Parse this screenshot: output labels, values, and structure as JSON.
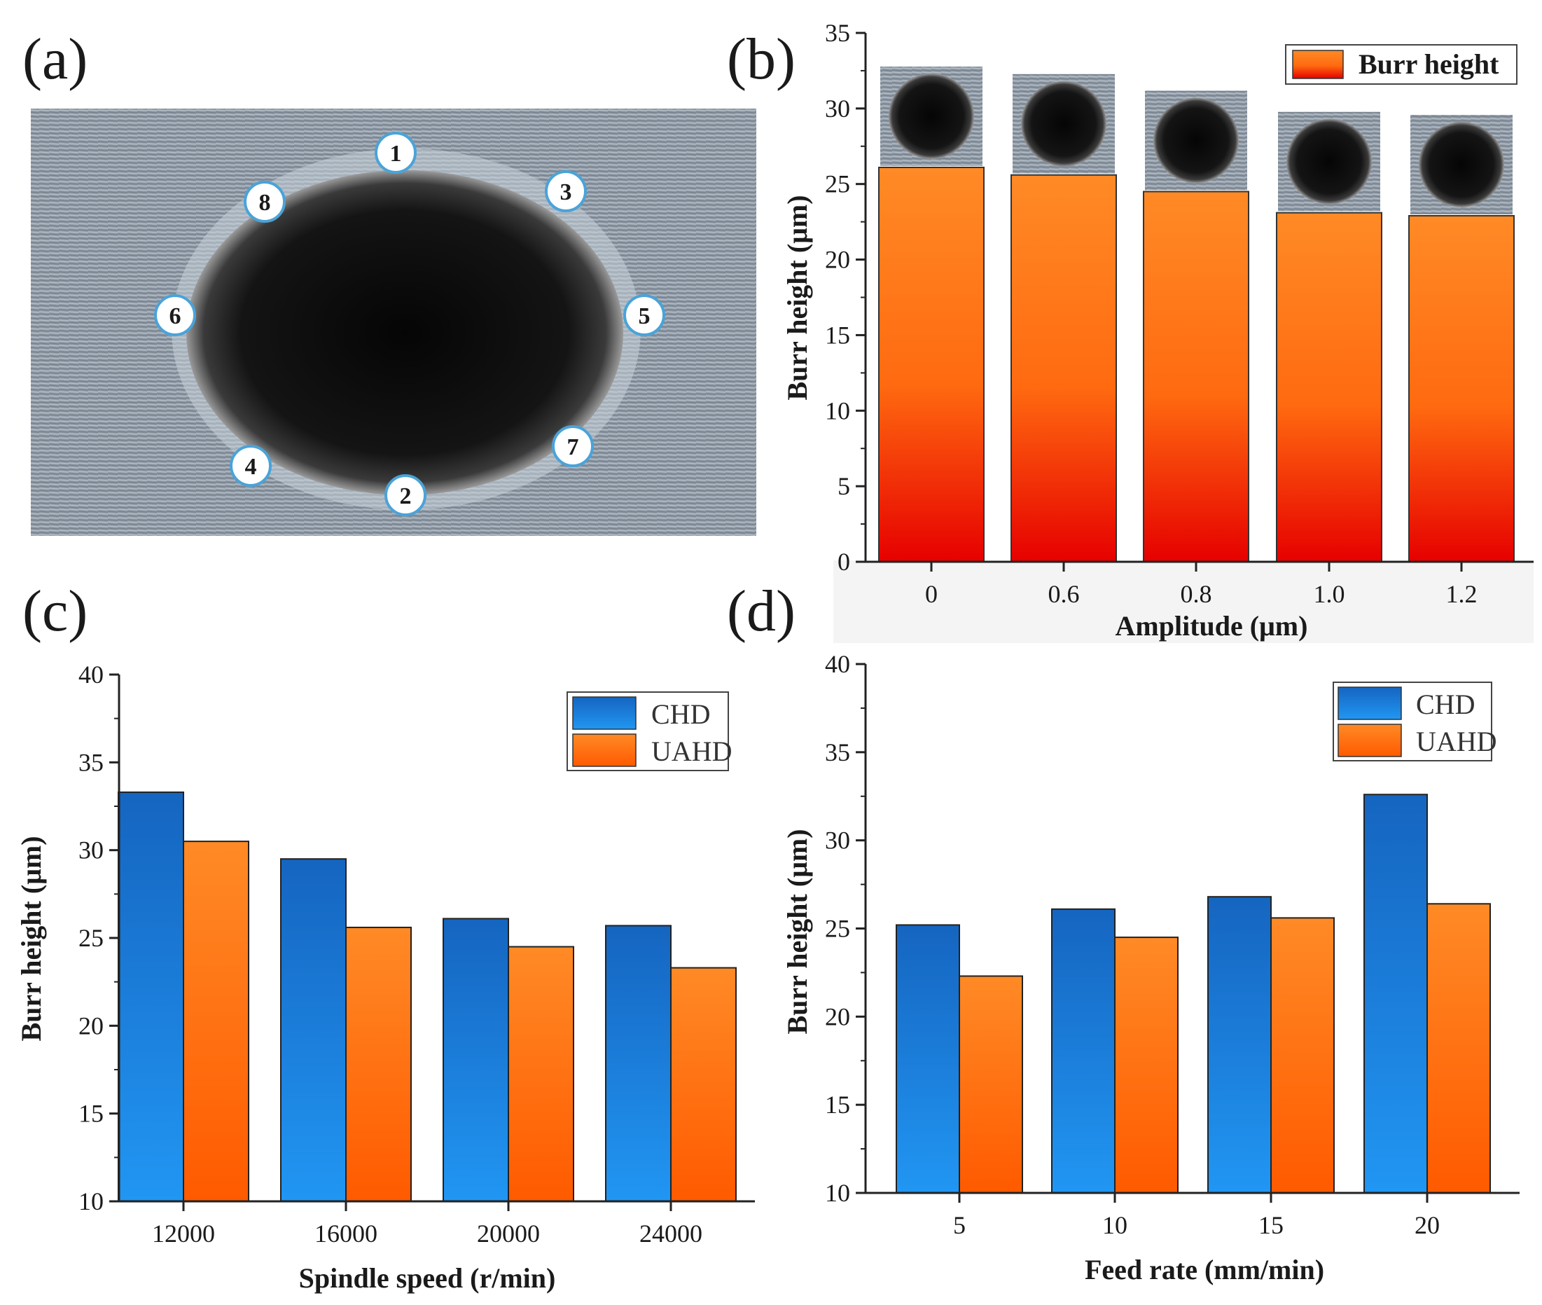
{
  "colors": {
    "chd_top": "#1565c0",
    "chd_bottom": "#2196f3",
    "uahd_top": "#ff8a26",
    "uahd_bottom": "#ff5a00",
    "burr_top": "#ff8a26",
    "burr_bottom": "#e60000"
  },
  "panels": {
    "a": {
      "letter": "(a)",
      "markers": [
        "1",
        "2",
        "3",
        "4",
        "5",
        "6",
        "7",
        "8"
      ]
    },
    "b": {
      "letter": "(b)"
    },
    "c": {
      "letter": "(c)"
    },
    "d": {
      "letter": "(d)"
    }
  },
  "chart_data": [
    {
      "id": "b",
      "type": "bar",
      "title": "",
      "xlabel": "Amplitude (μm)",
      "ylabel": "Burr height (μm)",
      "categories": [
        "0",
        "0.6",
        "0.8",
        "1.0",
        "1.2"
      ],
      "series": [
        {
          "name": "Burr height",
          "values": [
            26.1,
            25.6,
            24.5,
            23.1,
            22.9
          ]
        }
      ],
      "ylim": [
        0,
        35
      ],
      "yticks": [
        "0",
        "5",
        "10",
        "15",
        "20",
        "25",
        "30",
        "35"
      ],
      "legend": "top-right",
      "inset_images": "hole micrographs above each bar"
    },
    {
      "id": "c",
      "type": "bar",
      "title": "",
      "xlabel": "Spindle speed (r/min)",
      "ylabel": "Burr height (μm)",
      "categories": [
        "12000",
        "16000",
        "20000",
        "24000"
      ],
      "series": [
        {
          "name": "CHD",
          "values": [
            33.3,
            29.5,
            26.1,
            25.7
          ]
        },
        {
          "name": "UAHD",
          "values": [
            30.5,
            25.6,
            24.5,
            23.3
          ]
        }
      ],
      "ylim": [
        10,
        40
      ],
      "yticks": [
        "10",
        "15",
        "20",
        "25",
        "30",
        "35",
        "40"
      ],
      "legend": "top-right"
    },
    {
      "id": "d",
      "type": "bar",
      "title": "",
      "xlabel": "Feed rate (mm/min)",
      "ylabel": "Burr height (μm)",
      "categories": [
        "5",
        "10",
        "15",
        "20"
      ],
      "series": [
        {
          "name": "CHD",
          "values": [
            25.2,
            26.1,
            26.8,
            32.6
          ]
        },
        {
          "name": "UAHD",
          "values": [
            22.3,
            24.5,
            25.6,
            26.4
          ]
        }
      ],
      "ylim": [
        10,
        40
      ],
      "yticks": [
        "10",
        "15",
        "20",
        "25",
        "30",
        "35",
        "40"
      ],
      "legend": "top-right"
    }
  ]
}
